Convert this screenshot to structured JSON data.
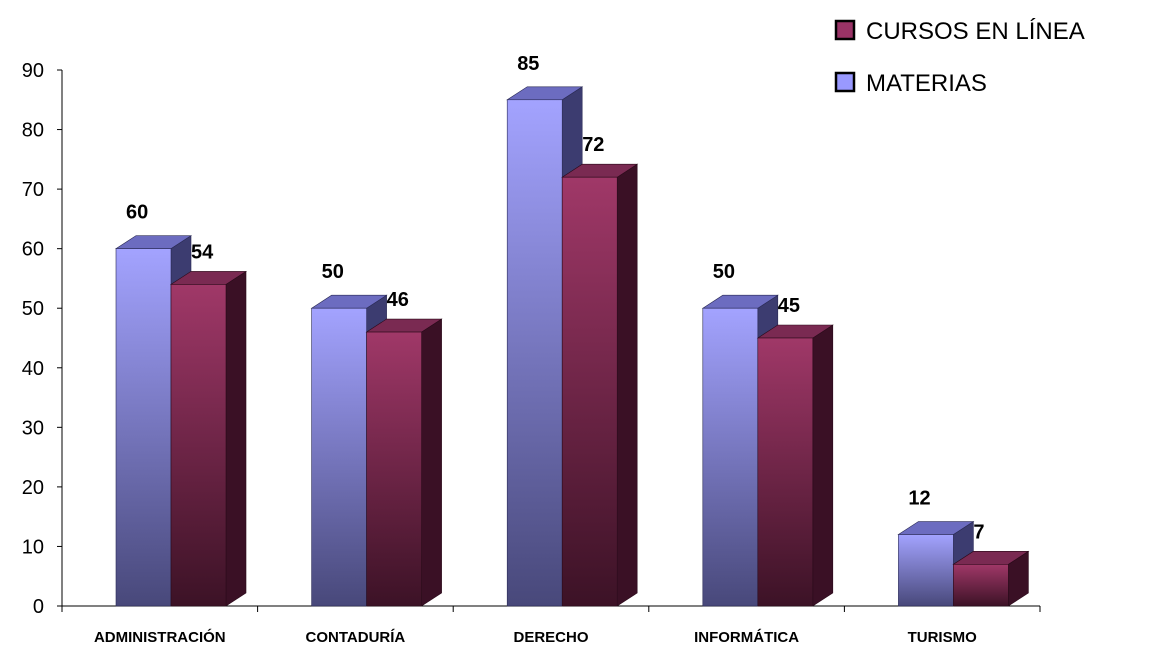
{
  "chart_data": {
    "type": "bar",
    "categories": [
      "ADMINISTRACIÓN",
      "CONTADURÍA",
      "DERECHO",
      "INFORMÁTICA",
      "TURISMO"
    ],
    "series": [
      {
        "name": "MATERIAS",
        "values": [
          60,
          50,
          85,
          50,
          12
        ],
        "color": "#9999ff"
      },
      {
        "name": "CURSOS EN LÍNEA",
        "values": [
          54,
          46,
          72,
          45,
          7
        ],
        "color": "#993366"
      }
    ],
    "yticks": [
      "0",
      "10",
      "20",
      "30",
      "40",
      "50",
      "60",
      "70",
      "80",
      "90"
    ],
    "ylim": [
      0,
      90
    ],
    "grid": false,
    "legend_position": "top-right",
    "legend_order": [
      "CURSOS EN LÍNEA",
      "MATERIAS"
    ],
    "style": "3d-column"
  }
}
